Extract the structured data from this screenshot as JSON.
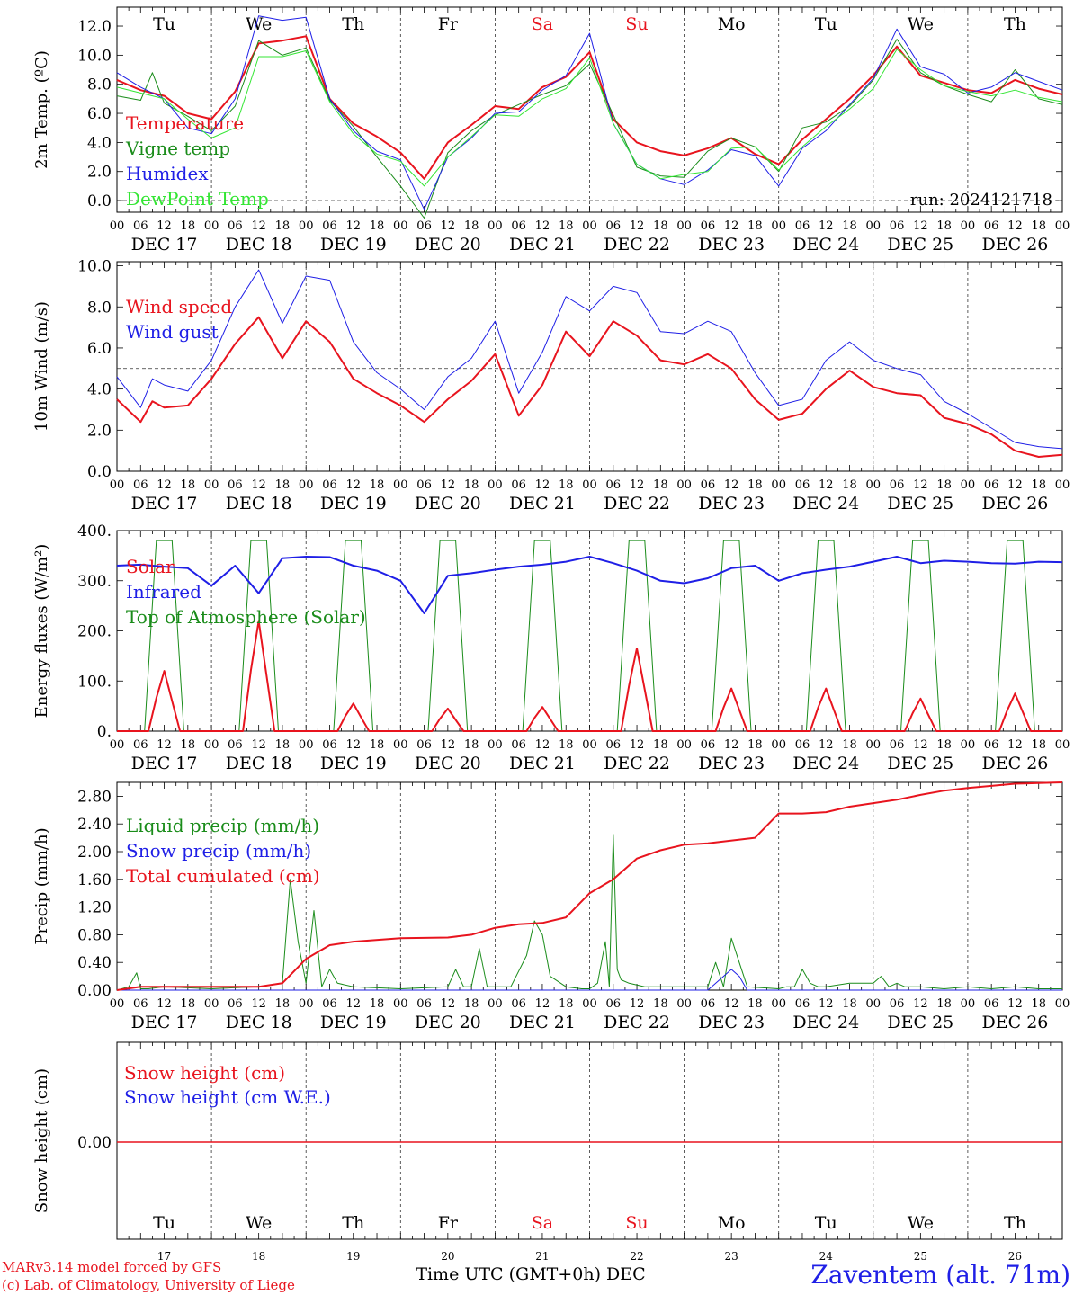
{
  "footer": {
    "model_line": "MARv3.14 model forced by GFS",
    "credit_line": "(c) Lab. of Climatology, University of Liege",
    "time_axis_label": "Time UTC (GMT+0h) DEC",
    "station": "Zaventem (alt. 71m)"
  },
  "colors": {
    "red": "#e8141e",
    "green": "#1a8c1a",
    "lightgreen": "#33e633",
    "blue": "#1f1fe6"
  },
  "chart_data": [
    {
      "id": "temperature",
      "type": "line",
      "ylabel": "2m Temp. (ºC)",
      "ylim": [
        -0.8,
        13.3
      ],
      "yticks": [
        "0.0",
        "2.0",
        "4.0",
        "6.0",
        "8.0",
        "10.0",
        "12.0"
      ],
      "yticks_values": [
        0,
        2,
        4,
        6,
        8,
        10,
        12
      ],
      "ref_line": 0,
      "run_label": "run: 2024121718",
      "day_names": [
        "Tu",
        "We",
        "Th",
        "Fr",
        "Sa",
        "Su",
        "Mo",
        "Tu",
        "We",
        "Th"
      ],
      "day_name_colors": [
        "black",
        "black",
        "black",
        "black",
        "red",
        "red",
        "black",
        "black",
        "black",
        "black"
      ],
      "hour_ticks": [
        "00",
        "06",
        "12",
        "18"
      ],
      "date_labels": [
        "DEC 17",
        "DEC 18",
        "DEC 19",
        "DEC 20",
        "DEC 21",
        "DEC 22",
        "DEC 23",
        "DEC 24",
        "DEC 25",
        "DEC 26"
      ],
      "legend": [
        "Temperature",
        "Vigne temp",
        "Humidex",
        "DewPoint Temp"
      ],
      "series": [
        {
          "name": "Temperature",
          "color": "red",
          "width": 2,
          "hours": [
            0,
            6,
            12,
            18,
            24,
            30,
            36,
            42,
            48,
            54,
            60,
            66,
            72,
            78,
            84,
            90,
            96,
            102,
            108,
            114,
            120,
            126,
            132,
            138,
            144,
            150,
            156,
            162,
            168,
            174,
            180,
            186,
            192,
            198,
            204,
            210,
            216,
            222,
            228,
            234,
            240
          ],
          "values": [
            8.3,
            7.6,
            7.2,
            6.0,
            5.6,
            7.5,
            10.8,
            11.0,
            11.3,
            7.0,
            5.3,
            4.4,
            3.3,
            1.5,
            4.0,
            5.2,
            6.5,
            6.3,
            7.8,
            8.5,
            10.2,
            5.6,
            4.0,
            3.4,
            3.1,
            3.6,
            4.3,
            3.2,
            2.5,
            4.2,
            5.6,
            7.0,
            8.6,
            10.6,
            8.6,
            8.1,
            7.6,
            7.4,
            8.3,
            7.7,
            7.3
          ]
        },
        {
          "name": "Vigne temp",
          "color": "green",
          "width": 1,
          "hours": [
            0,
            6,
            9,
            12,
            18,
            24,
            30,
            36,
            42,
            48,
            54,
            60,
            66,
            72,
            78,
            84,
            90,
            96,
            102,
            108,
            114,
            120,
            126,
            132,
            138,
            144,
            150,
            156,
            162,
            168,
            174,
            180,
            186,
            192,
            198,
            204,
            210,
            216,
            222,
            228,
            234,
            240
          ],
          "values": [
            7.2,
            6.9,
            8.8,
            6.7,
            5.8,
            4.8,
            6.5,
            11.0,
            10.0,
            10.5,
            6.9,
            5.1,
            3.0,
            1.0,
            -1.2,
            3.3,
            4.8,
            5.9,
            6.6,
            7.3,
            7.9,
            9.4,
            5.9,
            2.3,
            1.7,
            1.6,
            3.4,
            4.3,
            3.7,
            2.0,
            5.0,
            5.4,
            6.5,
            8.3,
            11.1,
            8.8,
            7.9,
            7.3,
            6.8,
            9.0,
            7.0,
            6.6
          ]
        },
        {
          "name": "Humidex",
          "color": "blue",
          "width": 1,
          "hours": [
            0,
            6,
            12,
            18,
            24,
            30,
            36,
            42,
            48,
            54,
            60,
            66,
            72,
            78,
            84,
            90,
            96,
            102,
            108,
            114,
            120,
            126,
            132,
            138,
            144,
            150,
            156,
            162,
            168,
            174,
            180,
            186,
            192,
            198,
            204,
            210,
            216,
            222,
            228,
            234,
            240
          ],
          "values": [
            8.8,
            7.8,
            7.0,
            5.0,
            4.6,
            7.0,
            12.7,
            12.4,
            12.6,
            7.0,
            4.8,
            3.4,
            2.8,
            -0.6,
            3.0,
            4.3,
            6.0,
            6.1,
            7.6,
            8.6,
            11.5,
            5.3,
            2.5,
            1.5,
            1.1,
            2.1,
            3.5,
            3.1,
            1.0,
            3.6,
            4.8,
            6.6,
            8.4,
            11.8,
            9.2,
            8.7,
            7.4,
            7.8,
            8.8,
            8.2,
            7.6
          ]
        },
        {
          "name": "DewPoint Temp",
          "color": "lightgreen",
          "width": 1,
          "hours": [
            0,
            6,
            12,
            18,
            24,
            30,
            36,
            42,
            48,
            54,
            60,
            66,
            72,
            78,
            84,
            90,
            96,
            102,
            108,
            114,
            120,
            126,
            132,
            138,
            144,
            150,
            156,
            162,
            168,
            174,
            180,
            186,
            192,
            198,
            204,
            210,
            216,
            222,
            228,
            234,
            240
          ],
          "values": [
            7.8,
            7.4,
            7.0,
            5.6,
            4.3,
            5.0,
            9.9,
            9.9,
            10.3,
            6.8,
            4.6,
            3.2,
            2.7,
            1.0,
            3.0,
            4.4,
            5.9,
            5.8,
            7.0,
            7.7,
            9.8,
            5.3,
            2.5,
            1.5,
            1.8,
            2.0,
            3.6,
            3.7,
            2.1,
            3.7,
            5.1,
            6.3,
            7.7,
            10.4,
            9.0,
            7.9,
            7.5,
            7.2,
            7.6,
            7.1,
            6.8
          ]
        }
      ]
    },
    {
      "id": "wind",
      "type": "line",
      "ylabel": "10m Wind (m/s)",
      "ylim": [
        0,
        10.2
      ],
      "yticks": [
        "0.0",
        "2.0",
        "4.0",
        "6.0",
        "8.0",
        "10.0"
      ],
      "yticks_values": [
        0,
        2,
        4,
        6,
        8,
        10
      ],
      "ref_line": 5,
      "legend": [
        "Wind speed",
        "Wind gust"
      ],
      "series": [
        {
          "name": "Wind speed",
          "color": "red",
          "width": 2,
          "hours": [
            0,
            6,
            9,
            12,
            18,
            24,
            30,
            36,
            42,
            48,
            54,
            60,
            66,
            72,
            78,
            84,
            90,
            96,
            102,
            108,
            114,
            120,
            126,
            132,
            138,
            144,
            150,
            156,
            162,
            168,
            174,
            180,
            186,
            192,
            198,
            204,
            210,
            216,
            222,
            228,
            234,
            240
          ],
          "values": [
            3.5,
            2.4,
            3.4,
            3.1,
            3.2,
            4.5,
            6.2,
            7.5,
            5.5,
            7.3,
            6.3,
            4.5,
            3.8,
            3.2,
            2.4,
            3.5,
            4.4,
            5.7,
            2.7,
            4.2,
            6.8,
            5.6,
            7.3,
            6.6,
            5.4,
            5.2,
            5.7,
            5.0,
            3.5,
            2.5,
            2.8,
            4.0,
            4.9,
            4.1,
            3.8,
            3.7,
            2.6,
            2.3,
            1.8,
            1.0,
            0.7,
            0.8
          ]
        },
        {
          "name": "Wind gust",
          "color": "blue",
          "width": 1,
          "hours": [
            0,
            6,
            9,
            12,
            18,
            24,
            30,
            36,
            42,
            48,
            54,
            60,
            66,
            72,
            78,
            84,
            90,
            96,
            102,
            108,
            114,
            120,
            126,
            132,
            138,
            144,
            150,
            156,
            162,
            168,
            174,
            180,
            186,
            192,
            198,
            204,
            210,
            216,
            222,
            228,
            234,
            240
          ],
          "values": [
            4.6,
            3.1,
            4.5,
            4.2,
            3.9,
            5.4,
            8.0,
            9.8,
            7.2,
            9.5,
            9.3,
            6.3,
            4.8,
            4.0,
            3.0,
            4.6,
            5.5,
            7.3,
            3.8,
            5.8,
            8.5,
            7.8,
            9.0,
            8.7,
            6.8,
            6.7,
            7.3,
            6.8,
            4.8,
            3.2,
            3.5,
            5.4,
            6.3,
            5.4,
            5.0,
            4.7,
            3.4,
            2.8,
            2.1,
            1.4,
            1.2,
            1.1
          ]
        }
      ]
    },
    {
      "id": "energy",
      "type": "line",
      "ylabel": "Energy fluxes (W/m²)",
      "ylim": [
        0,
        400
      ],
      "yticks": [
        "0.",
        "100.",
        "200.",
        "300.",
        "400."
      ],
      "yticks_values": [
        0,
        100,
        200,
        300,
        400
      ],
      "legend": [
        "Solar",
        "Infrared",
        "Top of Atmosphere (Solar)"
      ],
      "solar_peaks": [
        120,
        220,
        55,
        45,
        48,
        165,
        85,
        85,
        65,
        75
      ],
      "toa_peak": 380,
      "series": [
        {
          "name": "Infrared",
          "color": "blue",
          "width": 2,
          "hours": [
            0,
            6,
            12,
            18,
            24,
            30,
            36,
            42,
            48,
            54,
            60,
            66,
            72,
            78,
            84,
            90,
            96,
            102,
            108,
            114,
            120,
            126,
            132,
            138,
            144,
            150,
            156,
            162,
            168,
            174,
            180,
            186,
            192,
            198,
            204,
            210,
            216,
            222,
            228,
            234,
            240
          ],
          "values": [
            330,
            332,
            328,
            325,
            290,
            330,
            275,
            345,
            348,
            347,
            330,
            320,
            300,
            235,
            310,
            315,
            322,
            328,
            332,
            338,
            348,
            335,
            320,
            300,
            295,
            305,
            325,
            330,
            300,
            315,
            322,
            328,
            338,
            348,
            335,
            340,
            338,
            335,
            334,
            338,
            337
          ]
        }
      ]
    },
    {
      "id": "precip",
      "type": "line",
      "ylabel": "Precip (mm/h)",
      "ylim": [
        0,
        3.0
      ],
      "yticks": [
        "0.00",
        "0.40",
        "0.80",
        "1.20",
        "1.60",
        "2.00",
        "2.40",
        "2.80"
      ],
      "yticks_values": [
        0,
        0.4,
        0.8,
        1.2,
        1.6,
        2.0,
        2.4,
        2.8
      ],
      "legend": [
        "Liquid precip (mm/h)",
        "Snow precip (mm/h)",
        "Total cumulated (cm)"
      ],
      "series": [
        {
          "name": "Total cumulated (cm)",
          "color": "red",
          "width": 2,
          "hours": [
            0,
            6,
            12,
            24,
            36,
            42,
            48,
            54,
            60,
            72,
            84,
            90,
            96,
            102,
            108,
            114,
            120,
            126,
            132,
            138,
            144,
            150,
            162,
            168,
            174,
            180,
            186,
            192,
            198,
            204,
            210,
            216,
            222,
            228,
            234,
            240
          ],
          "values": [
            0.0,
            0.05,
            0.05,
            0.05,
            0.05,
            0.1,
            0.45,
            0.65,
            0.7,
            0.75,
            0.76,
            0.8,
            0.9,
            0.95,
            0.97,
            1.05,
            1.4,
            1.6,
            1.9,
            2.02,
            2.1,
            2.12,
            2.2,
            2.55,
            2.55,
            2.57,
            2.65,
            2.7,
            2.75,
            2.82,
            2.88,
            2.92,
            2.95,
            2.98,
            2.99,
            3.0
          ]
        },
        {
          "name": "Liquid precip (mm/h)",
          "color": "green",
          "width": 1,
          "hours": [
            0,
            3,
            5,
            6,
            8,
            12,
            24,
            36,
            42,
            44,
            46,
            48,
            50,
            52,
            54,
            56,
            60,
            72,
            84,
            86,
            88,
            90,
            92,
            94,
            96,
            100,
            104,
            106,
            108,
            110,
            114,
            118,
            120,
            122,
            124,
            125,
            126,
            127,
            128,
            130,
            134,
            138,
            144,
            150,
            152,
            154,
            156,
            160,
            168,
            170,
            172,
            174,
            176,
            178,
            180,
            186,
            192,
            194,
            196,
            198,
            200,
            204,
            210,
            216,
            222,
            228,
            234,
            240
          ],
          "values": [
            0,
            0.05,
            0.25,
            0.02,
            0.02,
            0.05,
            0.02,
            0.05,
            0.1,
            1.6,
            0.7,
            0.1,
            1.15,
            0.05,
            0.3,
            0.1,
            0.05,
            0.02,
            0.05,
            0.3,
            0.05,
            0.05,
            0.6,
            0.05,
            0.05,
            0.05,
            0.5,
            1.0,
            0.8,
            0.2,
            0.05,
            0.02,
            0.02,
            0.1,
            0.7,
            0.05,
            2.25,
            0.3,
            0.15,
            0.1,
            0.05,
            0.05,
            0.05,
            0.05,
            0.4,
            0.05,
            0.75,
            0.05,
            0.02,
            0.05,
            0.05,
            0.3,
            0.1,
            0.05,
            0.05,
            0.1,
            0.1,
            0.2,
            0.05,
            0.1,
            0.05,
            0.05,
            0.02,
            0.05,
            0.02,
            0.05,
            0.02,
            0.02
          ]
        },
        {
          "name": "Snow precip (mm/h)",
          "color": "blue",
          "width": 1,
          "hours": [
            0,
            150,
            154,
            156,
            158,
            160,
            240
          ],
          "values": [
            0,
            0,
            0.2,
            0.3,
            0.2,
            0,
            0
          ]
        }
      ]
    },
    {
      "id": "snow",
      "type": "line",
      "ylabel": "Snow height (cm)",
      "yticks": [
        "0.00"
      ],
      "legend": [
        "Snow height (cm)",
        "Snow height (cm W.E.)"
      ],
      "bottom_day_names": [
        "Tu",
        "We",
        "Th",
        "Fr",
        "Sa",
        "Su",
        "Mo",
        "Tu",
        "We",
        "Th"
      ],
      "bottom_day_numbers": [
        "17",
        "18",
        "19",
        "20",
        "21",
        "22",
        "23",
        "24",
        "25",
        "26"
      ],
      "series": [
        {
          "name": "Snow height (cm)",
          "color": "red",
          "width": 1,
          "hours": [
            0,
            240
          ],
          "values": [
            0,
            0
          ]
        }
      ]
    }
  ]
}
